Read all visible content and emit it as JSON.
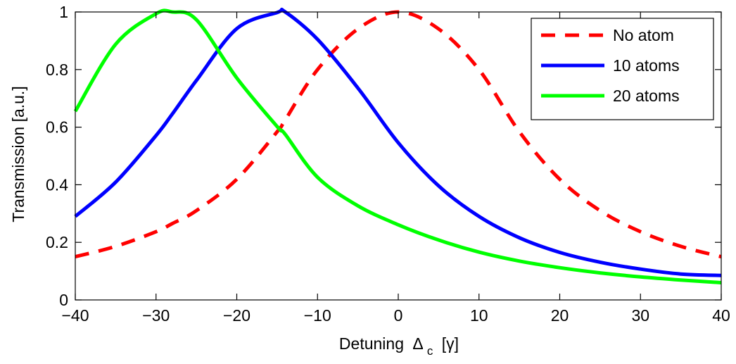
{
  "chart_data": {
    "type": "line",
    "title": "",
    "xlabel": "Detuning",
    "xlabel_symbol": "Δ",
    "xlabel_subscript": "c",
    "xlabel_unit": "[γ]",
    "ylabel": "Transmission [a.u.]",
    "xlim": [
      -40,
      40
    ],
    "ylim": [
      0,
      1
    ],
    "xticks": [
      -40,
      -30,
      -20,
      -10,
      0,
      10,
      20,
      30,
      40
    ],
    "xtick_labels": [
      "−40",
      "−30",
      "−20",
      "−10",
      "0",
      "10",
      "20",
      "30",
      "40"
    ],
    "yticks": [
      0,
      0.2,
      0.4,
      0.6,
      0.8,
      1
    ],
    "ytick_labels": [
      "0",
      "0.2",
      "0.4",
      "0.6",
      "0.8",
      "1"
    ],
    "grid": false,
    "legend_position": "top-right",
    "x": [
      -40,
      -35,
      -30,
      -28,
      -25,
      -20,
      -15,
      -14,
      -10,
      -5,
      0,
      5,
      10,
      15,
      20,
      25,
      30,
      35,
      40
    ],
    "series": [
      {
        "name": "No atom",
        "color": "#ff0000",
        "style": "dashed",
        "values": [
          0.15,
          0.186,
          0.237,
          0.265,
          0.31,
          0.419,
          0.584,
          0.625,
          0.8,
          0.941,
          1.0,
          0.941,
          0.8,
          0.584,
          0.419,
          0.31,
          0.237,
          0.186,
          0.15
        ]
      },
      {
        "name": "10 atoms",
        "color": "#0000ff",
        "style": "solid",
        "values": [
          0.29,
          0.409,
          0.571,
          0.645,
          0.762,
          0.942,
          0.998,
          1.0,
          0.905,
          0.736,
          0.546,
          0.396,
          0.29,
          0.216,
          0.165,
          0.131,
          0.107,
          0.09,
          0.085
        ]
      },
      {
        "name": "20 atoms",
        "color": "#00ff00",
        "style": "solid",
        "values": [
          0.655,
          0.888,
          0.994,
          1.0,
          0.973,
          0.771,
          0.602,
          0.575,
          0.426,
          0.327,
          0.261,
          0.208,
          0.166,
          0.135,
          0.112,
          0.094,
          0.08,
          0.069,
          0.06
        ]
      }
    ]
  }
}
